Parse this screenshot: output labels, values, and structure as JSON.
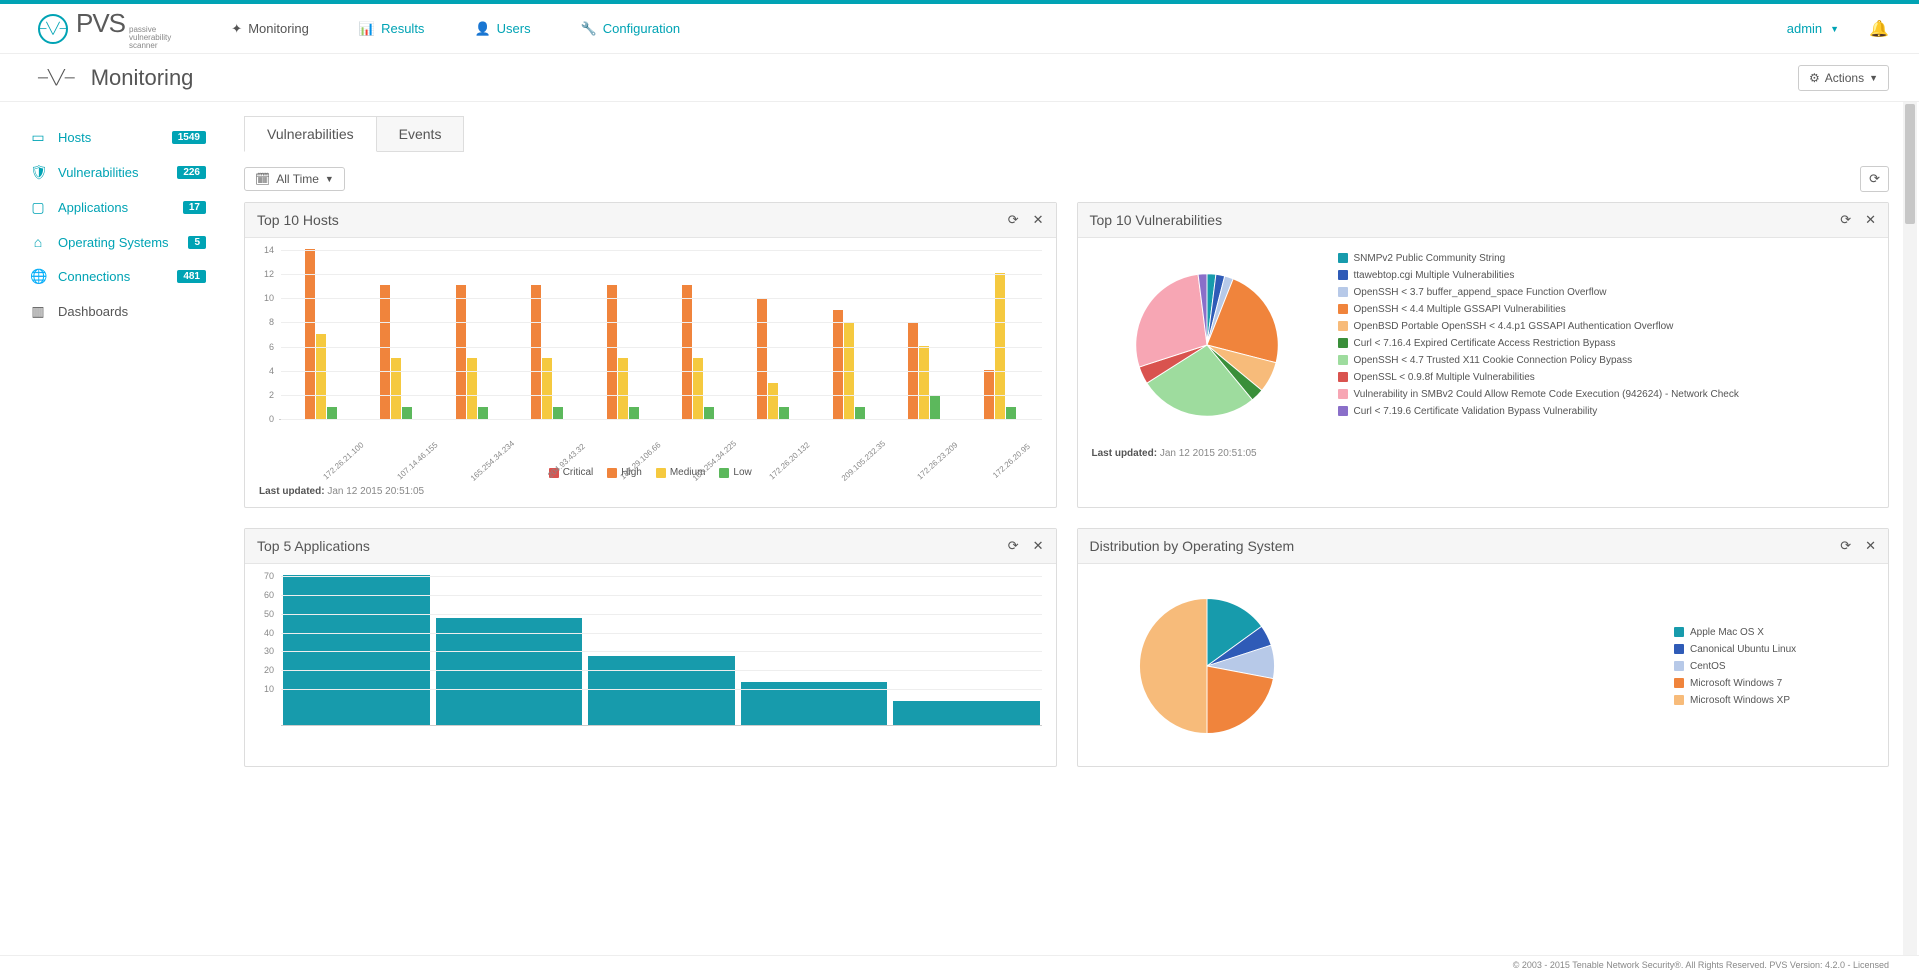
{
  "brand": {
    "main": "PVS",
    "sub1": "passive",
    "sub2": "vulnerability",
    "sub3": "scanner"
  },
  "nav": {
    "monitoring": "Monitoring",
    "results": "Results",
    "users": "Users",
    "configuration": "Configuration"
  },
  "user": {
    "name": "admin"
  },
  "page": {
    "title": "Monitoring",
    "actions": "Actions"
  },
  "sidebar": {
    "hosts": {
      "label": "Hosts",
      "count": "1549"
    },
    "vulnerabilities": {
      "label": "Vulnerabilities",
      "count": "226"
    },
    "applications": {
      "label": "Applications",
      "count": "17"
    },
    "os": {
      "label": "Operating Systems",
      "count": "5"
    },
    "connections": {
      "label": "Connections",
      "count": "481"
    },
    "dashboards": {
      "label": "Dashboards"
    }
  },
  "tabs": {
    "vulnerabilities": "Vulnerabilities",
    "events": "Events"
  },
  "filter": {
    "label": "All Time"
  },
  "top_hosts": {
    "title": "Top 10 Hosts",
    "type": "bar",
    "y_max": 14,
    "ytick_step": 2,
    "colors": {
      "critical": "#d9534f",
      "high": "#f0843c",
      "medium": "#f5c93f",
      "low": "#5cb85c"
    },
    "legend": {
      "critical": "Critical",
      "high": "High",
      "medium": "Medium",
      "low": "Low"
    },
    "categories": [
      "172.26.21.100",
      "107.14.46.155",
      "165.254.34.234",
      "204.93.43.32",
      "184.29.106.66",
      "165.254.34.225",
      "172.26.20.132",
      "209.105.232.35",
      "172.26.23.209",
      "172.26.20.95"
    ],
    "series": {
      "critical": [
        0,
        0,
        0,
        0,
        0,
        0,
        0,
        0,
        0,
        0
      ],
      "high": [
        14,
        11,
        11,
        11,
        11,
        11,
        10,
        9,
        8,
        4
      ],
      "medium": [
        7,
        5,
        5,
        5,
        5,
        5,
        3,
        8,
        6,
        12
      ],
      "low": [
        1,
        1,
        1,
        1,
        1,
        1,
        1,
        1,
        2,
        1
      ]
    },
    "last_updated_label": "Last updated:",
    "last_updated": "Jan 12 2015 20:51:05",
    "background": "#ffffff",
    "grid_color": "#eeeeee"
  },
  "top_vulns": {
    "title": "Top 10 Vulnerabilities",
    "type": "pie",
    "items": [
      {
        "label": "SNMPv2 Public Community String",
        "color": "#179bac",
        "value": 2
      },
      {
        "label": "ttawebtop.cgi Multiple Vulnerabilities",
        "color": "#2f5bb7",
        "value": 2
      },
      {
        "label": "OpenSSH < 3.7 buffer_append_space Function Overflow",
        "color": "#b7c9e8",
        "value": 2
      },
      {
        "label": "OpenSSH < 4.4 Multiple GSSAPI Vulnerabilities",
        "color": "#f0843c",
        "value": 23
      },
      {
        "label": "OpenBSD Portable OpenSSH < 4.4.p1 GSSAPI Authentication Overflow",
        "color": "#f7bb7a",
        "value": 7
      },
      {
        "label": "Curl < 7.16.4 Expired Certificate Access Restriction Bypass",
        "color": "#3a8f3a",
        "value": 3
      },
      {
        "label": "OpenSSH < 4.7 Trusted X11 Cookie Connection Policy Bypass",
        "color": "#9edc9e",
        "value": 27
      },
      {
        "label": "OpenSSL < 0.9.8f Multiple Vulnerabilities",
        "color": "#d9534f",
        "value": 4
      },
      {
        "label": "Vulnerability in SMBv2 Could Allow Remote Code Execution (942624) - Network Check",
        "color": "#f7a6b4",
        "value": 28
      },
      {
        "label": "Curl < 7.19.6 Certificate Validation Bypass Vulnerability",
        "color": "#8a6fc9",
        "value": 2
      }
    ],
    "last_updated_label": "Last updated:",
    "last_updated": "Jan 12 2015 20:51:05"
  },
  "dist_os": {
    "title": "Distribution by Operating System",
    "type": "pie",
    "items": [
      {
        "label": "Apple Mac OS X",
        "color": "#179bac",
        "value": 15
      },
      {
        "label": "Canonical Ubuntu Linux",
        "color": "#2f5bb7",
        "value": 5
      },
      {
        "label": "CentOS",
        "color": "#b7c9e8",
        "value": 8
      },
      {
        "label": "Microsoft Windows 7",
        "color": "#f0843c",
        "value": 22
      },
      {
        "label": "Microsoft Windows XP",
        "color": "#f7bb7a",
        "value": 50
      }
    ]
  },
  "top_apps": {
    "title": "Top 5 Applications",
    "type": "bar",
    "y_max": 70,
    "ytick_step": 10,
    "bar_color": "#179bac",
    "values": [
      70,
      50,
      32,
      20,
      11
    ],
    "background": "#ffffff"
  },
  "footer": "© 2003 - 2015 Tenable Network Security®. All Rights Reserved. PVS Version: 4.2.0 - Licensed"
}
